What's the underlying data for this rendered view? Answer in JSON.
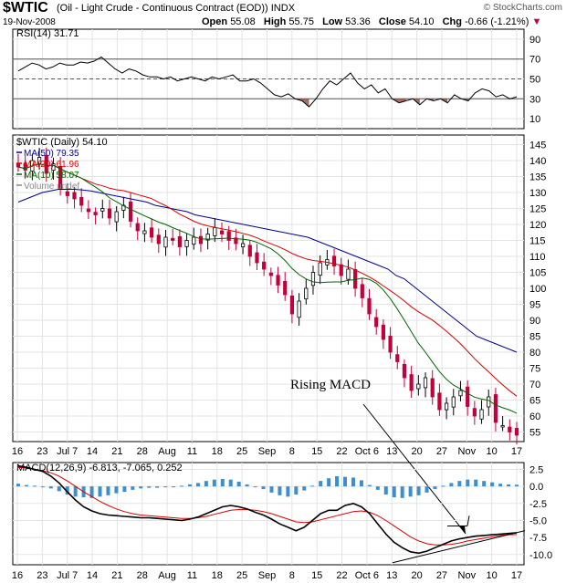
{
  "header": {
    "symbol": "$WTIC",
    "description": "(Oil - Light Crude - Continuous Contract (EOD)) INDX",
    "date": "19-Nov-2008",
    "open_label": "Open",
    "open": "55.08",
    "high_label": "High",
    "high": "55.75",
    "low_label": "Low",
    "low": "53.36",
    "close_label": "Close",
    "close": "54.10",
    "chg_label": "Chg",
    "chg": "-0.66 (-1.21%)",
    "watermark": "© StockCharts.com"
  },
  "colors": {
    "ma50": "#00008b",
    "ma20": "#dd0000",
    "ma10": "#006400",
    "up": "#000000",
    "down": "#c4003a",
    "macd_hist": "#3b8fcf",
    "rsi_fill": "#8b4a3a"
  },
  "chart_data": [
    {
      "type": "line",
      "panel": "rsi",
      "legend": "RSI(14) 31.71",
      "ylim": [
        0,
        100
      ],
      "yticks": [
        10,
        30,
        50,
        70,
        90
      ],
      "reference_lines": [
        30,
        50,
        70
      ],
      "values": [
        58,
        62,
        66,
        64,
        60,
        62,
        66,
        64,
        64,
        67,
        66,
        68,
        72,
        66,
        60,
        56,
        60,
        58,
        54,
        52,
        52,
        50,
        52,
        48,
        50,
        52,
        50,
        48,
        52,
        50,
        52,
        54,
        48,
        48,
        50,
        46,
        40,
        34,
        32,
        35,
        30,
        28,
        22,
        30,
        40,
        48,
        44,
        50,
        56,
        46,
        40,
        44,
        36,
        40,
        30,
        26,
        28,
        30,
        24,
        30,
        28,
        30,
        26,
        34,
        30,
        28,
        36,
        40,
        38,
        32,
        34,
        30,
        32
      ]
    },
    {
      "type": "candlestick",
      "panel": "price",
      "legend": [
        "$WTIC (Daily) 54.10",
        "MA(50) 79.35",
        "MA(20) 61.96",
        "MA(10) 58.07",
        "Volume undef"
      ],
      "ylim": [
        52,
        148
      ],
      "yticks": [
        55,
        60,
        65,
        70,
        75,
        80,
        85,
        90,
        95,
        100,
        105,
        110,
        115,
        120,
        125,
        130,
        135,
        140,
        145
      ],
      "x_tick_labels": [
        "16",
        "23",
        "Jul 7",
        "14",
        "21",
        "28",
        "Aug",
        "11",
        "18",
        "25",
        "Sep",
        "8",
        "15",
        "22",
        "Oct 6",
        "13",
        "20",
        "27",
        "Nov",
        "10",
        "17"
      ],
      "close": [
        138,
        137,
        140,
        141,
        136,
        139,
        131,
        129,
        128,
        126,
        124,
        123,
        125,
        122,
        124,
        126,
        121,
        118,
        118,
        116,
        114,
        116,
        115,
        113,
        115,
        116,
        114,
        117,
        119,
        117,
        115,
        114,
        114,
        110,
        108,
        106,
        104,
        101,
        98,
        92,
        96,
        100,
        105,
        108,
        109,
        107,
        104,
        106,
        100,
        97,
        92,
        88,
        84,
        80,
        77,
        72,
        68,
        70,
        72,
        66,
        62,
        64,
        66,
        68,
        63,
        60,
        62,
        66,
        58,
        57,
        55,
        54
      ],
      "ma50": [
        127,
        128,
        129,
        130,
        130.5,
        131,
        131,
        131,
        130.8,
        130.5,
        130,
        129.5,
        129,
        128.5,
        128,
        127.5,
        127,
        126,
        125.5,
        125,
        124.5,
        124,
        123,
        122.5,
        122,
        121.5,
        121,
        120.5,
        120,
        119.5,
        119,
        118.5,
        118,
        117.5,
        117,
        116.5,
        116,
        115,
        114,
        113,
        112,
        111,
        110,
        109,
        108,
        107,
        106,
        104,
        103,
        101,
        99,
        97,
        95,
        93,
        91,
        89,
        87,
        85,
        84,
        83,
        82,
        81,
        80
      ]
    },
    {
      "type": "macd",
      "panel": "macd",
      "legend": "MACD(12,26,9) -6.813, -7.065, 0.252",
      "ylim": [
        -11.5,
        3.5
      ],
      "yticks": [
        2.5,
        0.0,
        -2.5,
        -5.0,
        -7.5,
        -10.0
      ],
      "annotation": "Rising MACD",
      "macd": [
        3.0,
        2.8,
        2.5,
        2.2,
        1.5,
        0.5,
        -0.8,
        -2.0,
        -3.0,
        -3.6,
        -4.0,
        -4.2,
        -4.3,
        -4.4,
        -4.5,
        -4.6,
        -4.6,
        -4.7,
        -4.8,
        -4.9,
        -5.0,
        -4.8,
        -4.5,
        -4.0,
        -3.5,
        -3.0,
        -2.8,
        -3.0,
        -3.3,
        -3.8,
        -4.2,
        -4.8,
        -5.5,
        -6.0,
        -6.5,
        -6.0,
        -5.0,
        -4.0,
        -3.5,
        -3.5,
        -2.8,
        -2.5,
        -3.0,
        -4.0,
        -5.5,
        -7.0,
        -8.2,
        -9.0,
        -9.6,
        -9.8,
        -9.5,
        -9.0,
        -8.5,
        -8.0,
        -7.7,
        -7.5,
        -7.3,
        -7.2,
        -7.1,
        -7.0,
        -6.9,
        -6.8
      ],
      "signal": [
        2.8,
        2.7,
        2.5,
        2.3,
        2.0,
        1.5,
        0.8,
        0.0,
        -0.8,
        -1.5,
        -2.2,
        -2.8,
        -3.3,
        -3.7,
        -4.0,
        -4.2,
        -4.3,
        -4.4,
        -4.5,
        -4.6,
        -4.7,
        -4.7,
        -4.6,
        -4.4,
        -4.1,
        -3.8,
        -3.5,
        -3.4,
        -3.4,
        -3.5,
        -3.7,
        -4.0,
        -4.4,
        -4.8,
        -5.2,
        -5.3,
        -5.2,
        -4.9,
        -4.6,
        -4.3,
        -4.0,
        -3.7,
        -3.6,
        -3.8,
        -4.3,
        -5.0,
        -5.8,
        -6.6,
        -7.4,
        -8.0,
        -8.4,
        -8.6,
        -8.6,
        -8.5,
        -8.3,
        -8.0,
        -7.8,
        -7.6,
        -7.4,
        -7.2,
        -7.1,
        -7.065
      ],
      "histogram": [
        0.4,
        0.2,
        0.1,
        0.0,
        -0.3,
        -0.7,
        -1.2,
        -1.5,
        -1.6,
        -1.7,
        -1.5,
        -1.3,
        -1.0,
        -0.8,
        -0.5,
        -0.3,
        -0.2,
        -0.2,
        -0.1,
        -0.1,
        0.1,
        0.3,
        0.5,
        0.8,
        1.0,
        1.1,
        1.0,
        0.7,
        0.3,
        0.0,
        -0.4,
        -0.9,
        -1.3,
        -1.5,
        -1.2,
        -0.6,
        0.1,
        0.8,
        1.2,
        1.5,
        1.4,
        1.3,
        0.9,
        0.2,
        -0.5,
        -1.2,
        -1.6,
        -1.7,
        -1.5,
        -1.3,
        -0.9,
        -0.4,
        0.1,
        0.5,
        0.8,
        1.0,
        1.0,
        0.8,
        0.6,
        0.4,
        0.3,
        0.25
      ]
    }
  ]
}
